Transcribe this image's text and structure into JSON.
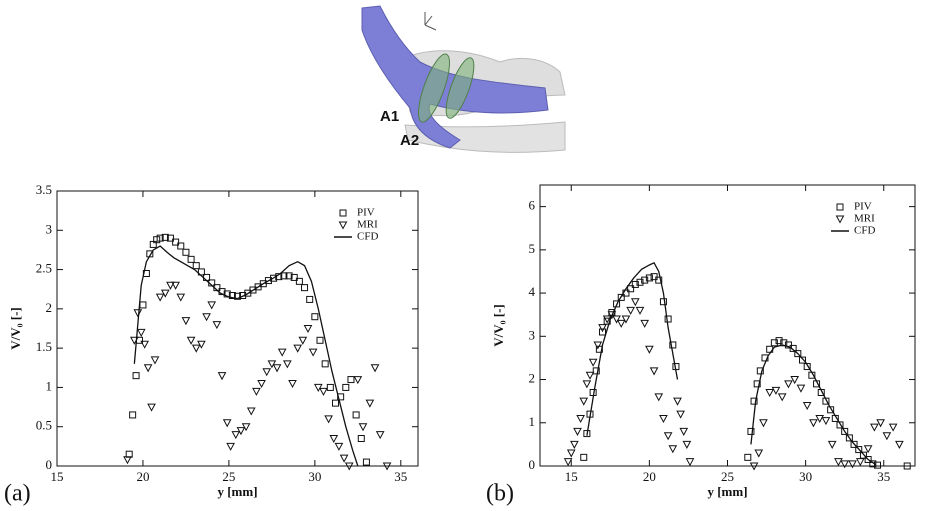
{
  "illustration": {
    "labels": [
      "A1",
      "A2"
    ]
  },
  "chart_data": [
    {
      "type": "scatter",
      "panel": "(a)",
      "x_label": "y [mm]",
      "y_label": "V/V₀ [-]",
      "xlim": [
        15,
        36
      ],
      "xticks": [
        15,
        20,
        25,
        30,
        35
      ],
      "ylim": [
        0,
        3.5
      ],
      "yticks": [
        0,
        0.5,
        1,
        1.5,
        2,
        2.5,
        3,
        3.5
      ],
      "legend": "upper right",
      "series": [
        {
          "name": "PIV",
          "marker": "square",
          "color": "#111111",
          "x": [
            19.2,
            19.4,
            19.6,
            19.8,
            20.0,
            20.2,
            20.4,
            20.6,
            20.8,
            21.0,
            21.3,
            21.6,
            21.9,
            22.2,
            22.5,
            22.8,
            23.1,
            23.4,
            23.7,
            24.0,
            24.3,
            24.6,
            24.9,
            25.2,
            25.5,
            25.8,
            26.1,
            26.4,
            26.7,
            27.0,
            27.3,
            27.6,
            27.9,
            28.2,
            28.5,
            28.8,
            29.1,
            29.4,
            29.7,
            30.0,
            30.3,
            30.6,
            30.9,
            31.2,
            31.5,
            31.8,
            32.1,
            32.4,
            32.7,
            33.0
          ],
          "values": [
            0.15,
            0.65,
            1.15,
            1.6,
            2.05,
            2.45,
            2.7,
            2.82,
            2.88,
            2.9,
            2.91,
            2.9,
            2.85,
            2.8,
            2.72,
            2.63,
            2.55,
            2.47,
            2.4,
            2.33,
            2.27,
            2.22,
            2.19,
            2.17,
            2.16,
            2.17,
            2.2,
            2.24,
            2.28,
            2.32,
            2.36,
            2.39,
            2.41,
            2.42,
            2.42,
            2.4,
            2.35,
            2.27,
            2.12,
            1.9,
            1.6,
            1.3,
            1.0,
            0.8,
            0.88,
            1.0,
            1.1,
            0.65,
            0.35,
            0.05
          ]
        },
        {
          "name": "MRI",
          "marker": "triangle-down",
          "color": "#111111",
          "x": [
            19.1,
            19.5,
            19.7,
            19.9,
            20.1,
            20.3,
            20.5,
            20.7,
            21.0,
            21.3,
            21.6,
            21.9,
            22.2,
            22.5,
            22.8,
            23.1,
            23.4,
            23.7,
            24.0,
            24.3,
            24.6,
            24.9,
            25.1,
            25.4,
            25.7,
            26.0,
            26.3,
            26.6,
            26.9,
            27.2,
            27.5,
            27.8,
            28.1,
            28.4,
            28.7,
            29.0,
            29.3,
            29.6,
            29.9,
            30.2,
            30.5,
            30.8,
            31.1,
            31.4,
            31.7,
            32.0,
            32.5,
            32.8,
            33.2,
            33.5,
            33.8,
            34.2
          ],
          "values": [
            0.08,
            1.6,
            1.95,
            1.7,
            1.55,
            1.25,
            0.75,
            1.35,
            2.15,
            2.2,
            2.3,
            2.3,
            2.15,
            1.85,
            1.6,
            1.5,
            1.55,
            1.9,
            2.05,
            1.8,
            1.15,
            0.55,
            0.25,
            0.4,
            0.45,
            0.5,
            0.7,
            0.95,
            1.05,
            1.2,
            1.3,
            1.25,
            1.45,
            1.3,
            1.05,
            1.5,
            1.6,
            1.75,
            1.45,
            1.0,
            0.95,
            0.6,
            0.35,
            0.25,
            0.1,
            0.0,
            1.1,
            0.5,
            0.8,
            1.25,
            0.4,
            0.0
          ]
        },
        {
          "name": "CFD",
          "marker": "line",
          "color": "#111111",
          "x": [
            19.5,
            19.7,
            19.9,
            20.2,
            20.6,
            21.0,
            21.4,
            21.8,
            22.2,
            22.6,
            23.0,
            23.5,
            24.0,
            24.5,
            25.0,
            25.5,
            26.0,
            26.5,
            27.0,
            27.5,
            28.0,
            28.5,
            29.0,
            29.4,
            29.8,
            30.2,
            30.6,
            31.0,
            31.4,
            31.8,
            32.2,
            32.5
          ],
          "values": [
            1.3,
            1.8,
            2.3,
            2.6,
            2.75,
            2.8,
            2.72,
            2.65,
            2.6,
            2.55,
            2.5,
            2.4,
            2.3,
            2.2,
            2.15,
            2.13,
            2.18,
            2.25,
            2.32,
            2.38,
            2.45,
            2.55,
            2.6,
            2.55,
            2.35,
            2.0,
            1.6,
            1.2,
            0.85,
            0.5,
            0.2,
            0.0
          ]
        }
      ]
    },
    {
      "type": "scatter",
      "panel": "(b)",
      "x_label": "y [mm]",
      "y_label": "V/V₀ [-]",
      "xlim": [
        13,
        37
      ],
      "xticks": [
        15,
        20,
        25,
        30,
        35
      ],
      "ylim": [
        0,
        6.5
      ],
      "yticks": [
        0,
        1,
        2,
        3,
        4,
        5,
        6
      ],
      "legend": "upper right",
      "series": [
        {
          "name": "PIV",
          "marker": "square",
          "color": "#111111",
          "x": [
            15.8,
            16.0,
            16.2,
            16.4,
            16.6,
            16.8,
            17.0,
            17.3,
            17.6,
            17.9,
            18.2,
            18.5,
            18.8,
            19.1,
            19.4,
            19.7,
            20.0,
            20.3,
            20.6,
            20.9,
            21.2,
            21.5,
            21.7,
            26.3,
            26.5,
            26.7,
            26.9,
            27.1,
            27.4,
            27.7,
            28.0,
            28.3,
            28.6,
            28.9,
            29.2,
            29.5,
            29.8,
            30.1,
            30.4,
            30.7,
            31.0,
            31.3,
            31.6,
            31.9,
            32.2,
            32.5,
            32.8,
            33.1,
            33.4,
            33.7,
            34.0,
            34.3,
            34.6,
            36.5
          ],
          "values": [
            0.2,
            0.75,
            1.2,
            1.7,
            2.2,
            2.7,
            3.1,
            3.35,
            3.55,
            3.75,
            3.9,
            4.0,
            4.1,
            4.2,
            4.25,
            4.3,
            4.35,
            4.38,
            4.3,
            3.8,
            3.4,
            2.8,
            2.3,
            0.2,
            0.8,
            1.5,
            1.9,
            2.2,
            2.5,
            2.7,
            2.85,
            2.9,
            2.85,
            2.8,
            2.72,
            2.6,
            2.45,
            2.3,
            2.1,
            1.9,
            1.7,
            1.5,
            1.3,
            1.1,
            0.95,
            0.8,
            0.65,
            0.5,
            0.38,
            0.25,
            0.15,
            0.05,
            0.02,
            0.0
          ]
        },
        {
          "name": "MRI",
          "marker": "triangle-down",
          "color": "#111111",
          "x": [
            14.8,
            15.0,
            15.2,
            15.4,
            15.6,
            15.8,
            16.0,
            16.2,
            16.4,
            16.7,
            17.0,
            17.3,
            17.6,
            17.9,
            18.2,
            18.5,
            18.8,
            19.1,
            19.4,
            19.7,
            20.0,
            20.3,
            20.6,
            20.9,
            21.2,
            21.5,
            21.8,
            22.0,
            22.2,
            22.4,
            22.6,
            26.7,
            27.0,
            27.3,
            27.7,
            28.1,
            28.5,
            28.9,
            29.3,
            29.7,
            30.1,
            30.5,
            30.9,
            31.3,
            31.7,
            32.1,
            32.5,
            33.0,
            33.5,
            34.0,
            34.4,
            34.8,
            35.2,
            35.6,
            36.0
          ],
          "values": [
            0.1,
            0.3,
            0.5,
            0.8,
            1.1,
            1.5,
            1.9,
            2.1,
            2.4,
            2.8,
            3.2,
            3.4,
            3.5,
            3.4,
            3.3,
            3.4,
            3.6,
            3.8,
            3.6,
            3.3,
            2.7,
            2.2,
            1.6,
            1.1,
            0.7,
            0.4,
            1.5,
            1.2,
            0.8,
            0.5,
            0.1,
            0.0,
            0.3,
            1.0,
            1.7,
            1.75,
            1.6,
            1.9,
            2.0,
            1.8,
            1.4,
            1.0,
            1.1,
            1.05,
            0.5,
            0.1,
            0.05,
            0.05,
            0.1,
            0.4,
            0.9,
            1.0,
            0.7,
            0.9,
            0.5
          ]
        },
        {
          "name": "CFD",
          "marker": "line",
          "color": "#111111",
          "x": [
            16.0,
            16.5,
            17.0,
            17.5,
            18.0,
            18.5,
            19.0,
            19.5,
            20.0,
            20.3,
            20.6,
            20.9,
            21.2,
            21.5,
            21.8,
            24.0,
            26.5,
            26.8,
            27.2,
            27.6,
            28.0,
            28.5,
            29.0,
            29.5,
            30.0,
            30.5,
            31.0,
            31.5,
            32.0,
            32.5,
            33.0,
            33.5,
            34.0,
            34.5
          ],
          "values": [
            0.7,
            1.8,
            2.8,
            3.4,
            3.8,
            4.1,
            4.35,
            4.55,
            4.65,
            4.7,
            4.5,
            4.0,
            3.2,
            2.6,
            2.0,
            null,
            0.5,
            1.5,
            2.2,
            2.55,
            2.75,
            2.8,
            2.75,
            2.6,
            2.4,
            2.1,
            1.75,
            1.4,
            1.1,
            0.8,
            0.55,
            0.35,
            0.15,
            0.03
          ]
        }
      ]
    }
  ]
}
